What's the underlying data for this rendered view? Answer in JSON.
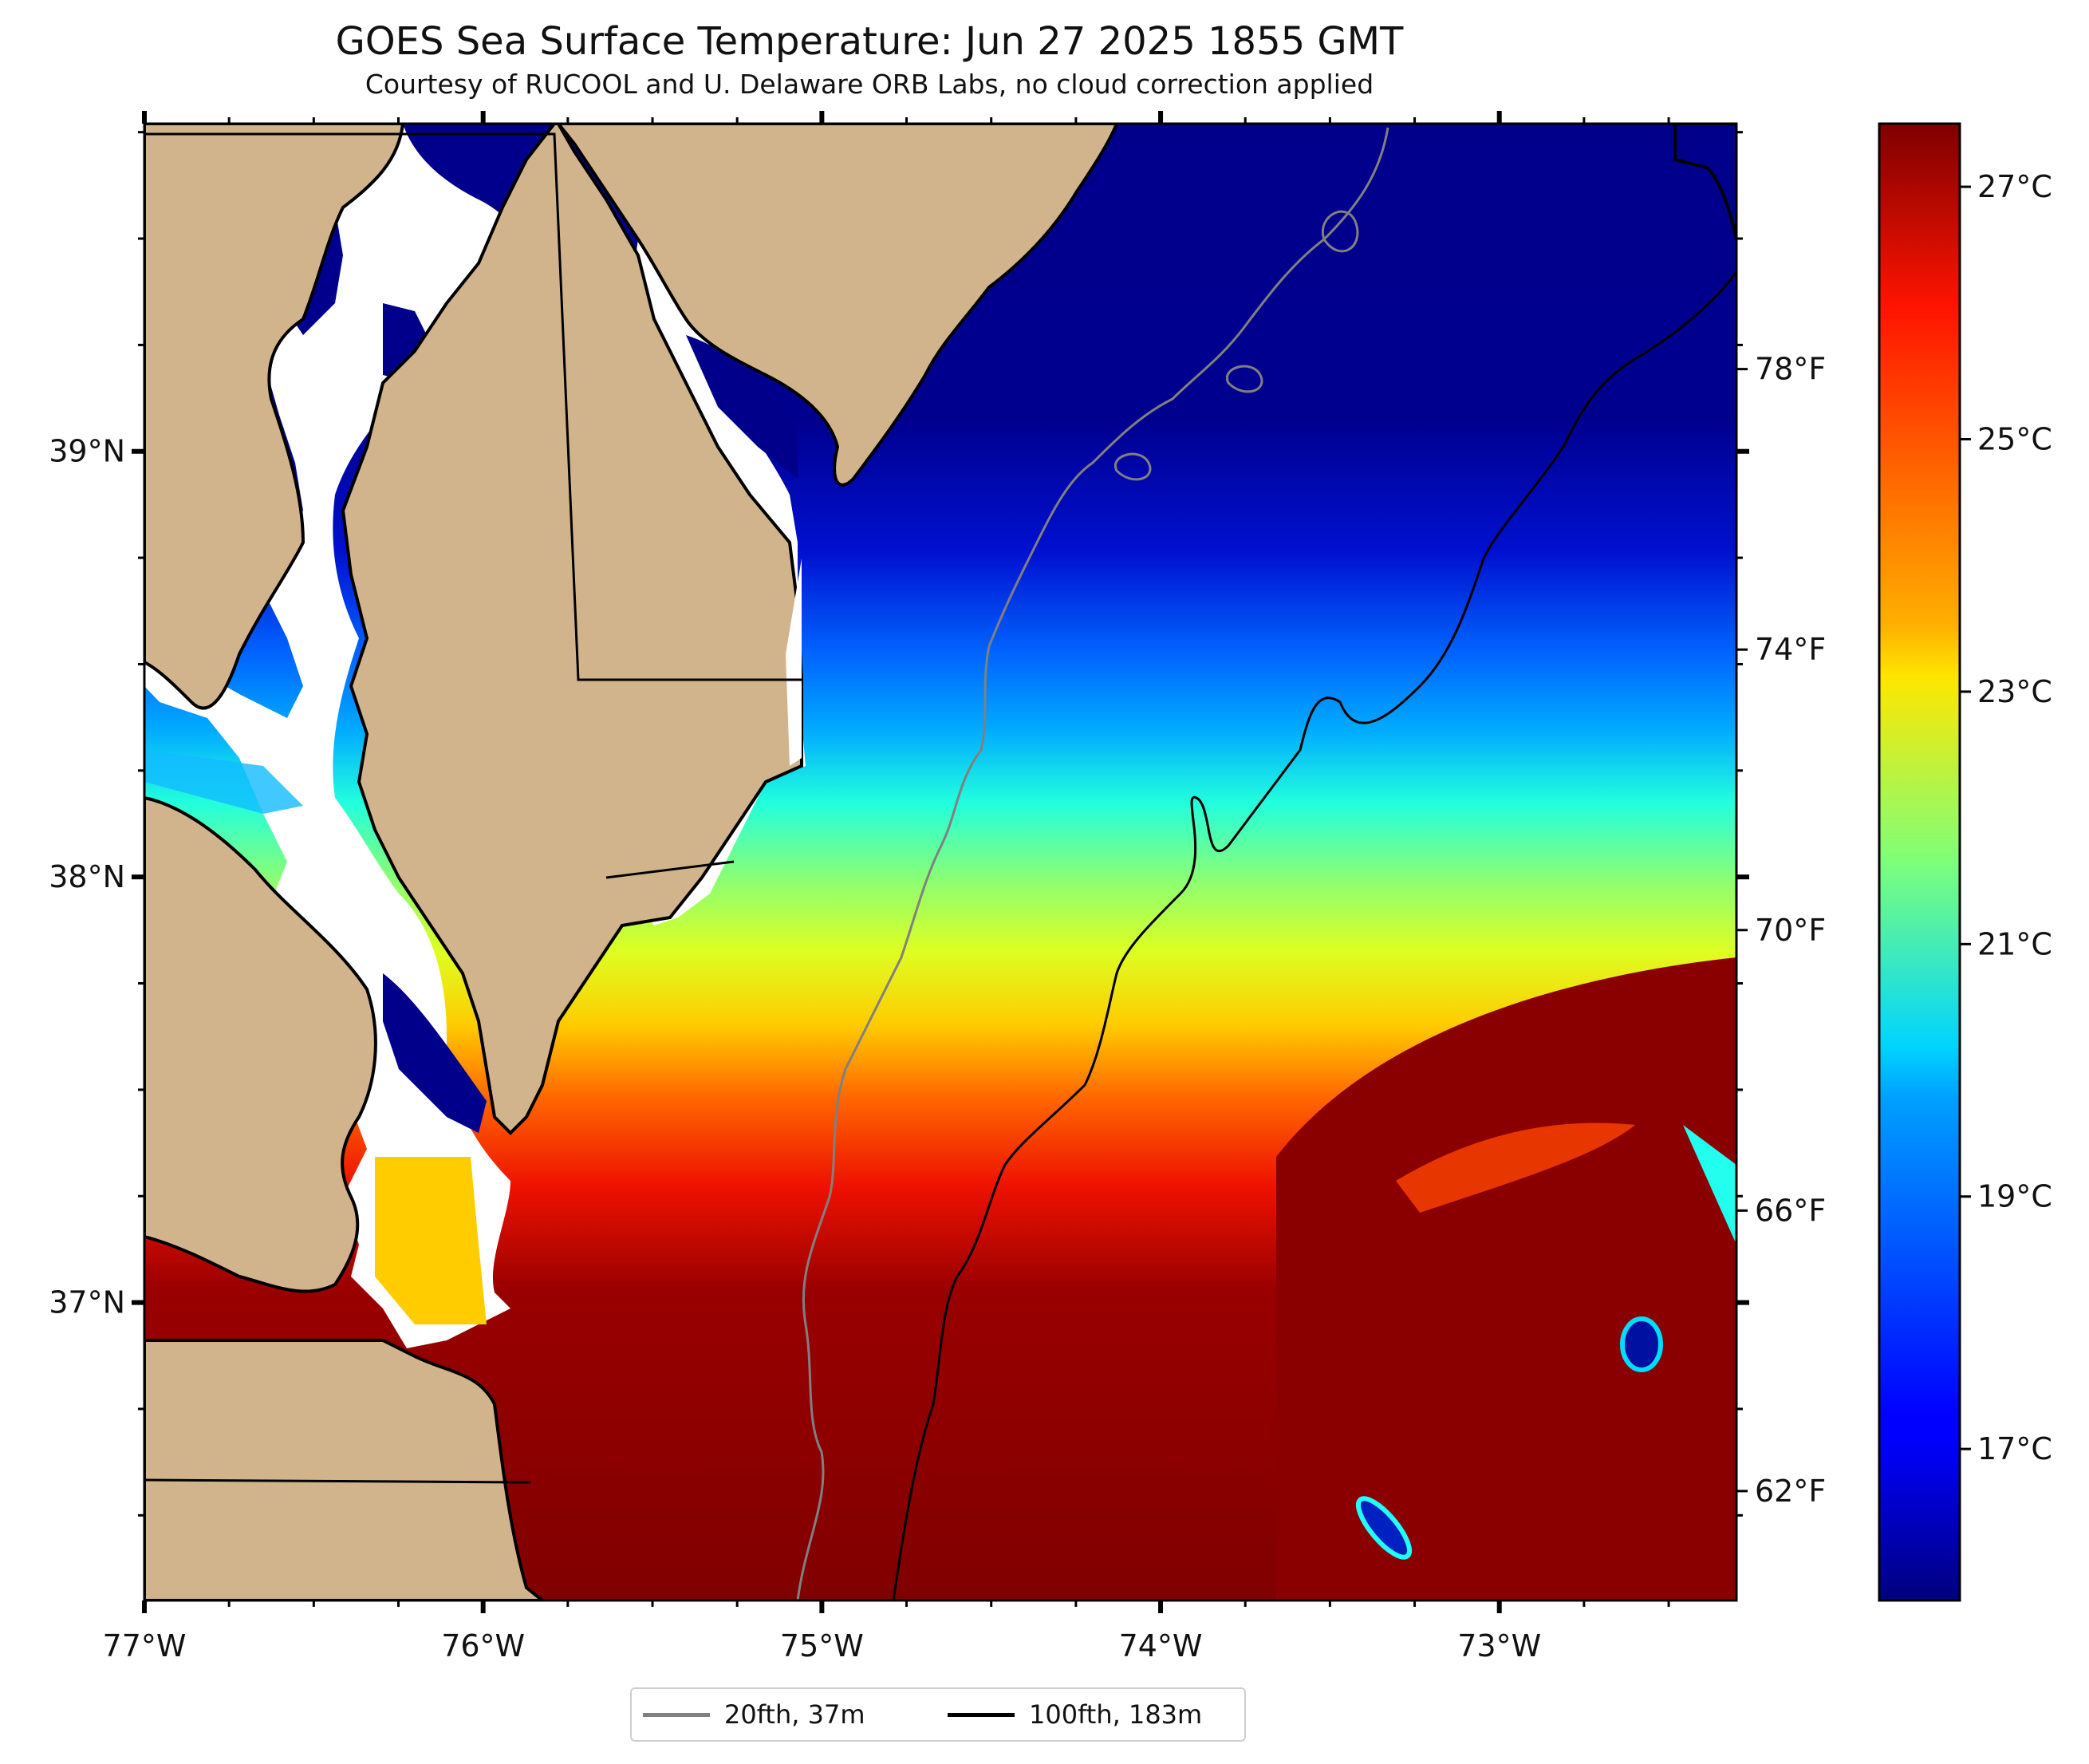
{
  "title": "GOES Sea Surface Temperature: Jun 27 2025 1855 GMT",
  "subtitle": "Courtesy of RUCOOL and U. Delaware ORB Labs, no cloud correction applied",
  "map": {
    "lon_range": [
      -77.0,
      -72.3
    ],
    "lat_range": [
      36.3,
      39.77
    ],
    "lon_ticks": [
      {
        "value": -77,
        "label": "77°W"
      },
      {
        "value": -76,
        "label": "76°W"
      },
      {
        "value": -75,
        "label": "75°W"
      },
      {
        "value": -74,
        "label": "74°W"
      },
      {
        "value": -73,
        "label": "73°W"
      }
    ],
    "lat_ticks": [
      {
        "value": 39,
        "label": "39°N"
      },
      {
        "value": 38,
        "label": "38°N"
      },
      {
        "value": 37,
        "label": "37°N"
      }
    ],
    "colors": {
      "land": "#d2b48c",
      "bay_no_data": "#ffffff",
      "coast": "#000000",
      "contour_20fth": "#808080",
      "contour_100fth": "#000000"
    }
  },
  "colorbar": {
    "colormap": "jet",
    "celsius_range": [
      15.8,
      27.5
    ],
    "celsius_ticks": [
      {
        "value": 17,
        "label": "17°C"
      },
      {
        "value": 19,
        "label": "19°C"
      },
      {
        "value": 21,
        "label": "21°C"
      },
      {
        "value": 23,
        "label": "23°C"
      },
      {
        "value": 25,
        "label": "25°C"
      },
      {
        "value": 27,
        "label": "27°C"
      }
    ],
    "fahrenheit_ticks": [
      {
        "value": 62,
        "label": "62°F"
      },
      {
        "value": 66,
        "label": "66°F"
      },
      {
        "value": 70,
        "label": "70°F"
      },
      {
        "value": 74,
        "label": "74°F"
      },
      {
        "value": 78,
        "label": "78°F"
      }
    ]
  },
  "legend": {
    "items": [
      {
        "label": "20fth, 37m",
        "color": "#808080"
      },
      {
        "label": "100fth, 183m",
        "color": "#000000"
      }
    ]
  }
}
